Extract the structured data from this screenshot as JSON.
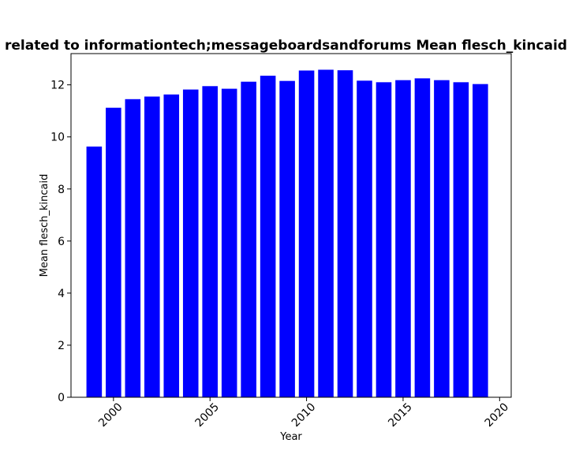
{
  "chart_data": {
    "type": "bar",
    "title": "related to informationtech;messageboardsandforums Mean flesch_kincaid in p",
    "xlabel": "Year",
    "ylabel": "Mean flesch_kincaid",
    "bar_color": "#0000ff",
    "xlim": [
      1997.8,
      2020.6
    ],
    "ylim": [
      0,
      13.2
    ],
    "x_ticks": [
      2000,
      2005,
      2010,
      2015,
      2020
    ],
    "y_ticks": [
      0,
      2,
      4,
      6,
      8,
      10,
      12
    ],
    "x": [
      1999,
      2000,
      2001,
      2002,
      2003,
      2004,
      2005,
      2006,
      2007,
      2008,
      2009,
      2010,
      2011,
      2012,
      2013,
      2014,
      2015,
      2016,
      2017,
      2018,
      2019
    ],
    "values": [
      9.63,
      11.12,
      11.45,
      11.55,
      11.63,
      11.82,
      11.95,
      11.85,
      12.12,
      12.35,
      12.15,
      12.55,
      12.58,
      12.56,
      12.16,
      12.1,
      12.18,
      12.25,
      12.18,
      12.1,
      12.03
    ]
  }
}
